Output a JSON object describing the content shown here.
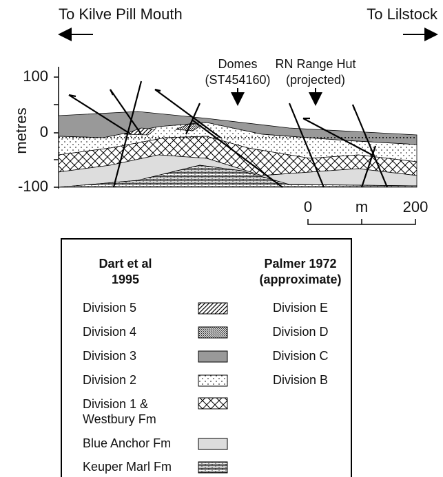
{
  "directions": {
    "left": "To Kilve Pill Mouth",
    "right": "To Lilstock"
  },
  "annotations": {
    "domes": [
      "Domes",
      "(ST454160)"
    ],
    "hut": [
      "RN Range Hut",
      "(projected)"
    ]
  },
  "axis": {
    "label": "metres",
    "ticks": [
      "100",
      "0",
      "-100"
    ]
  },
  "scale_bar": {
    "start": "0",
    "unit": "m",
    "end": "200"
  },
  "legend": {
    "left_header": [
      "Dart et al",
      "1995"
    ],
    "right_header": [
      "Palmer 1972",
      "(approximate)"
    ],
    "rows": [
      {
        "left": [
          "Division 5"
        ],
        "right": "Division E"
      },
      {
        "left": [
          "Division 4"
        ],
        "right": "Division D"
      },
      {
        "left": [
          "Division 3"
        ],
        "right": "Division C"
      },
      {
        "left": [
          "Division 2"
        ],
        "right": "Division B"
      },
      {
        "left": [
          "Division 1 &",
          "Westbury Fm"
        ]
      },
      {
        "left": [
          "Blue Anchor Fm"
        ]
      },
      {
        "left": [
          "Keuper Marl Fm"
        ]
      }
    ]
  }
}
